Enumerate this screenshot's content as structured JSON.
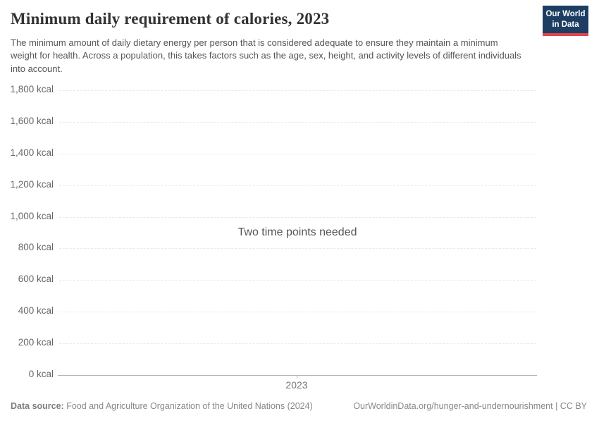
{
  "header": {
    "title": "Minimum daily requirement of calories, 2023",
    "subtitle": "The minimum amount of daily dietary energy per person that is considered adequate to ensure they maintain a minimum weight for health. Across a population, this takes factors such as the age, sex, height, and activity levels of different individuals into account.",
    "logo": {
      "line1": "Our World",
      "line2": "in Data",
      "bg_color": "#1d3d63",
      "accent_color": "#e0434c"
    }
  },
  "chart_data": {
    "type": "line",
    "title": "Minimum daily requirement of calories, 2023",
    "empty_message": "Two time points needed",
    "series": [],
    "unit": "kcal",
    "ylim": [
      0,
      1800
    ],
    "grid": "horizontal-dashed",
    "legend_position": "none",
    "yticks": [
      {
        "value": 1800,
        "label": "1,800 kcal"
      },
      {
        "value": 1600,
        "label": "1,600 kcal"
      },
      {
        "value": 1400,
        "label": "1,400 kcal"
      },
      {
        "value": 1200,
        "label": "1,200 kcal"
      },
      {
        "value": 1000,
        "label": "1,000 kcal"
      },
      {
        "value": 800,
        "label": "800 kcal"
      },
      {
        "value": 600,
        "label": "600 kcal"
      },
      {
        "value": 400,
        "label": "400 kcal"
      },
      {
        "value": 200,
        "label": "200 kcal"
      },
      {
        "value": 0,
        "label": "0 kcal"
      }
    ],
    "xticks": [
      {
        "value": 2023,
        "label": "2023"
      }
    ]
  },
  "footer": {
    "datasource_label": "Data source:",
    "datasource_value": "Food and Agriculture Organization of the United Nations (2024)",
    "link_text": "OurWorldinData.org/hunger-and-undernourishment",
    "separator": "|",
    "license": "CC BY"
  }
}
